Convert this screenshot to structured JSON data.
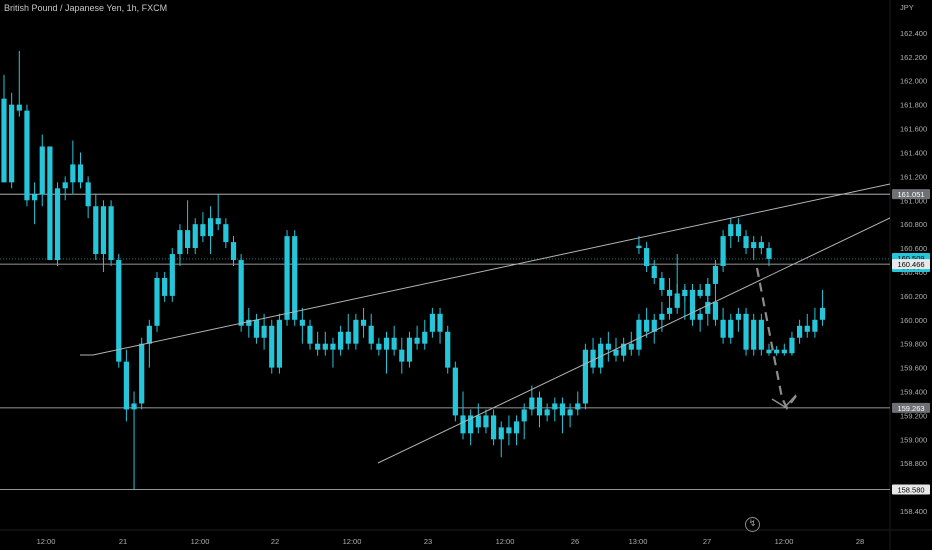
{
  "title": "British Pound / Japanese Yen, 1h, FXCM",
  "icons": {
    "bolt": "lightning-bolt-icon"
  },
  "chart_data": {
    "type": "candlestick",
    "title": "British Pound / Japanese Yen, 1h, FXCM",
    "currency": "JPY",
    "ylim": [
      158.3,
      162.55
    ],
    "yticks": [
      "162.400",
      "162.200",
      "162.000",
      "161.800",
      "161.600",
      "161.400",
      "161.200",
      "161.000",
      "160.800",
      "160.600",
      "160.400",
      "160.200",
      "160.000",
      "159.800",
      "159.600",
      "159.400",
      "159.200",
      "159.000",
      "158.800",
      "158.600",
      "158.400"
    ],
    "xticks": [
      "12:00",
      "21",
      "12:00",
      "22",
      "12:00",
      "23",
      "12:00",
      "26",
      "13:00",
      "27",
      "12:00",
      "28"
    ],
    "price_tags": [
      {
        "value": 161.051,
        "label": "161.051",
        "style": "gray"
      },
      {
        "value": 160.509,
        "label": "160.509",
        "sub": "38:55",
        "style": "cyan"
      },
      {
        "value": 160.466,
        "label": "160.466",
        "style": "white"
      },
      {
        "value": 159.263,
        "label": "159.263",
        "style": "gray"
      },
      {
        "value": 158.58,
        "label": "158.580",
        "style": "white"
      }
    ],
    "horizontal_levels": [
      161.051,
      160.466,
      159.263,
      158.58
    ],
    "wedge": {
      "upper": [
        {
          "t": 0,
          "p": 159.76
        },
        {
          "t": 106,
          "p": 161.1
        }
      ],
      "lower": [
        {
          "t": 35,
          "p": 158.8
        },
        {
          "t": 106,
          "p": 160.8
        }
      ]
    },
    "projection": [
      {
        "t": 90.5,
        "p": 160.47
      },
      {
        "t": 95.5,
        "p": 159.38
      },
      {
        "t": 97.5,
        "p": 159.27
      },
      {
        "t": 98.8,
        "p": 159.37
      }
    ],
    "colors": {
      "bullish": "#26c6da",
      "bearish": "#26c6da",
      "background": "#000000",
      "lines": "#b4b4b4",
      "projection": "#8c8c8c"
    },
    "candles": [
      {
        "o": 161.85,
        "h": 162.05,
        "l": 161.15,
        "c": 161.15
      },
      {
        "o": 161.15,
        "h": 161.9,
        "l": 161.1,
        "c": 161.8
      },
      {
        "o": 161.8,
        "h": 162.25,
        "l": 161.7,
        "c": 161.75
      },
      {
        "o": 161.75,
        "h": 161.8,
        "l": 160.95,
        "c": 161.0
      },
      {
        "o": 161.0,
        "h": 161.15,
        "l": 160.8,
        "c": 161.05
      },
      {
        "o": 161.05,
        "h": 161.55,
        "l": 160.95,
        "c": 161.45
      },
      {
        "o": 161.45,
        "h": 161.45,
        "l": 160.5,
        "c": 160.5
      },
      {
        "o": 160.5,
        "h": 161.15,
        "l": 160.45,
        "c": 161.1
      },
      {
        "o": 161.1,
        "h": 161.2,
        "l": 161.0,
        "c": 161.15
      },
      {
        "o": 161.15,
        "h": 161.5,
        "l": 161.05,
        "c": 161.3
      },
      {
        "o": 161.3,
        "h": 161.4,
        "l": 161.1,
        "c": 161.15
      },
      {
        "o": 161.15,
        "h": 161.2,
        "l": 160.85,
        "c": 160.95
      },
      {
        "o": 160.95,
        "h": 161.05,
        "l": 160.5,
        "c": 160.55
      },
      {
        "o": 160.55,
        "h": 161.0,
        "l": 160.4,
        "c": 160.95
      },
      {
        "o": 160.95,
        "h": 161.0,
        "l": 160.45,
        "c": 160.5
      },
      {
        "o": 160.5,
        "h": 160.55,
        "l": 159.6,
        "c": 159.65
      },
      {
        "o": 159.65,
        "h": 159.75,
        "l": 159.15,
        "c": 159.25
      },
      {
        "o": 159.25,
        "h": 159.4,
        "l": 158.58,
        "c": 159.3
      },
      {
        "o": 159.3,
        "h": 159.85,
        "l": 159.25,
        "c": 159.8
      },
      {
        "o": 159.8,
        "h": 160.0,
        "l": 159.6,
        "c": 159.95
      },
      {
        "o": 159.95,
        "h": 160.4,
        "l": 159.9,
        "c": 160.35
      },
      {
        "o": 160.35,
        "h": 160.4,
        "l": 160.15,
        "c": 160.2
      },
      {
        "o": 160.2,
        "h": 160.6,
        "l": 160.15,
        "c": 160.55
      },
      {
        "o": 160.55,
        "h": 160.8,
        "l": 160.45,
        "c": 160.75
      },
      {
        "o": 160.75,
        "h": 161.0,
        "l": 160.55,
        "c": 160.6
      },
      {
        "o": 160.6,
        "h": 160.85,
        "l": 160.55,
        "c": 160.8
      },
      {
        "o": 160.8,
        "h": 160.9,
        "l": 160.65,
        "c": 160.7
      },
      {
        "o": 160.7,
        "h": 160.95,
        "l": 160.55,
        "c": 160.85
      },
      {
        "o": 160.85,
        "h": 161.05,
        "l": 160.75,
        "c": 160.8
      },
      {
        "o": 160.8,
        "h": 160.85,
        "l": 160.6,
        "c": 160.65
      },
      {
        "o": 160.65,
        "h": 160.7,
        "l": 160.45,
        "c": 160.5
      },
      {
        "o": 160.5,
        "h": 160.55,
        "l": 159.9,
        "c": 159.95
      },
      {
        "o": 159.95,
        "h": 160.1,
        "l": 159.85,
        "c": 160.0
      },
      {
        "o": 160.0,
        "h": 160.05,
        "l": 159.8,
        "c": 159.85
      },
      {
        "o": 159.85,
        "h": 160.05,
        "l": 159.75,
        "c": 159.95
      },
      {
        "o": 159.95,
        "h": 160.0,
        "l": 159.55,
        "c": 159.6
      },
      {
        "o": 159.6,
        "h": 160.05,
        "l": 159.55,
        "c": 160.0
      },
      {
        "o": 160.0,
        "h": 160.75,
        "l": 159.95,
        "c": 160.7
      },
      {
        "o": 160.7,
        "h": 160.75,
        "l": 159.95,
        "c": 160.0
      },
      {
        "o": 160.0,
        "h": 160.1,
        "l": 159.8,
        "c": 159.95
      },
      {
        "o": 159.95,
        "h": 160.0,
        "l": 159.75,
        "c": 159.8
      },
      {
        "o": 159.8,
        "h": 159.9,
        "l": 159.7,
        "c": 159.75
      },
      {
        "o": 159.75,
        "h": 159.9,
        "l": 159.7,
        "c": 159.8
      },
      {
        "o": 159.8,
        "h": 159.85,
        "l": 159.6,
        "c": 159.75
      },
      {
        "o": 159.75,
        "h": 159.95,
        "l": 159.7,
        "c": 159.9
      },
      {
        "o": 159.9,
        "h": 160.05,
        "l": 159.75,
        "c": 159.8
      },
      {
        "o": 159.8,
        "h": 160.05,
        "l": 159.75,
        "c": 160.0
      },
      {
        "o": 160.0,
        "h": 160.1,
        "l": 159.85,
        "c": 159.95
      },
      {
        "o": 159.95,
        "h": 160.05,
        "l": 159.75,
        "c": 159.8
      },
      {
        "o": 159.8,
        "h": 159.85,
        "l": 159.7,
        "c": 159.75
      },
      {
        "o": 159.75,
        "h": 159.9,
        "l": 159.55,
        "c": 159.85
      },
      {
        "o": 159.85,
        "h": 159.95,
        "l": 159.7,
        "c": 159.75
      },
      {
        "o": 159.75,
        "h": 159.85,
        "l": 159.55,
        "c": 159.65
      },
      {
        "o": 159.65,
        "h": 159.9,
        "l": 159.6,
        "c": 159.85
      },
      {
        "o": 159.85,
        "h": 159.95,
        "l": 159.75,
        "c": 159.8
      },
      {
        "o": 159.8,
        "h": 160.0,
        "l": 159.75,
        "c": 159.9
      },
      {
        "o": 159.9,
        "h": 160.1,
        "l": 159.85,
        "c": 160.05
      },
      {
        "o": 160.05,
        "h": 160.1,
        "l": 159.8,
        "c": 159.9
      },
      {
        "o": 159.9,
        "h": 159.95,
        "l": 159.55,
        "c": 159.6
      },
      {
        "o": 159.6,
        "h": 159.65,
        "l": 159.15,
        "c": 159.2
      },
      {
        "o": 159.2,
        "h": 159.4,
        "l": 159.0,
        "c": 159.05
      },
      {
        "o": 159.05,
        "h": 159.25,
        "l": 158.95,
        "c": 159.2
      },
      {
        "o": 159.2,
        "h": 159.3,
        "l": 159.05,
        "c": 159.1
      },
      {
        "o": 159.1,
        "h": 159.25,
        "l": 159.05,
        "c": 159.2
      },
      {
        "o": 159.2,
        "h": 159.25,
        "l": 158.95,
        "c": 159.0
      },
      {
        "o": 159.0,
        "h": 159.15,
        "l": 158.85,
        "c": 159.1
      },
      {
        "o": 159.1,
        "h": 159.2,
        "l": 158.95,
        "c": 159.05
      },
      {
        "o": 159.05,
        "h": 159.2,
        "l": 158.95,
        "c": 159.15
      },
      {
        "o": 159.15,
        "h": 159.3,
        "l": 159.0,
        "c": 159.25
      },
      {
        "o": 159.25,
        "h": 159.45,
        "l": 159.2,
        "c": 159.35
      },
      {
        "o": 159.35,
        "h": 159.4,
        "l": 159.1,
        "c": 159.2
      },
      {
        "o": 159.2,
        "h": 159.3,
        "l": 159.15,
        "c": 159.25
      },
      {
        "o": 159.25,
        "h": 159.35,
        "l": 159.15,
        "c": 159.3
      },
      {
        "o": 159.3,
        "h": 159.35,
        "l": 159.05,
        "c": 159.2
      },
      {
        "o": 159.2,
        "h": 159.3,
        "l": 159.1,
        "c": 159.25
      },
      {
        "o": 159.25,
        "h": 159.4,
        "l": 159.2,
        "c": 159.3
      },
      {
        "o": 159.3,
        "h": 159.8,
        "l": 159.25,
        "c": 159.75
      },
      {
        "o": 159.75,
        "h": 159.85,
        "l": 159.55,
        "c": 159.6
      },
      {
        "o": 159.6,
        "h": 159.85,
        "l": 159.55,
        "c": 159.8
      },
      {
        "o": 159.8,
        "h": 159.9,
        "l": 159.65,
        "c": 159.75
      },
      {
        "o": 159.75,
        "h": 159.85,
        "l": 159.65,
        "c": 159.7
      }
    ],
    "candles_right": [
      {
        "o": 159.7,
        "h": 159.85,
        "l": 159.65,
        "c": 159.8
      },
      {
        "o": 159.8,
        "h": 159.9,
        "l": 159.7,
        "c": 159.75
      },
      {
        "o": 159.75,
        "h": 160.05,
        "l": 159.7,
        "c": 160.0
      },
      {
        "o": 160.0,
        "h": 160.1,
        "l": 159.85,
        "c": 159.9
      },
      {
        "o": 159.9,
        "h": 160.05,
        "l": 159.8,
        "c": 160.0
      },
      {
        "o": 160.0,
        "h": 160.15,
        "l": 159.9,
        "c": 160.05
      },
      {
        "o": 160.05,
        "h": 160.2,
        "l": 160.0,
        "c": 160.1
      },
      {
        "o": 160.1,
        "h": 160.55,
        "l": 160.05,
        "c": 160.2
      },
      {
        "o": 160.2,
        "h": 160.3,
        "l": 160.0,
        "c": 160.25
      },
      {
        "o": 160.25,
        "h": 160.3,
        "l": 159.95,
        "c": 160.0
      },
      {
        "o": 160.0,
        "h": 160.1,
        "l": 159.9,
        "c": 160.05
      },
      {
        "o": 160.05,
        "h": 160.2,
        "l": 159.95,
        "c": 160.15
      },
      {
        "o": 160.15,
        "h": 160.25,
        "l": 159.95,
        "c": 160.0
      },
      {
        "o": 160.0,
        "h": 160.1,
        "l": 159.8,
        "c": 159.85
      },
      {
        "o": 159.85,
        "h": 160.05,
        "l": 159.8,
        "c": 160.0
      },
      {
        "o": 160.0,
        "h": 160.1,
        "l": 159.9,
        "c": 160.05
      },
      {
        "o": 160.05,
        "h": 160.1,
        "l": 159.7,
        "c": 159.75
      },
      {
        "o": 159.75,
        "h": 160.05,
        "l": 159.7,
        "c": 160.0
      },
      {
        "o": 160.0,
        "h": 160.05,
        "l": 159.7,
        "c": 159.75
      },
      {
        "o": 159.75,
        "h": 159.8,
        "l": 159.7,
        "c": 159.72
      },
      {
        "o": 159.72,
        "h": 159.78,
        "l": 159.7,
        "c": 159.75
      },
      {
        "o": 159.75,
        "h": 159.8,
        "l": 159.7,
        "c": 159.72
      },
      {
        "o": 159.72,
        "h": 159.9,
        "l": 159.7,
        "c": 159.85
      },
      {
        "o": 159.85,
        "h": 160.0,
        "l": 159.8,
        "c": 159.95
      },
      {
        "o": 159.95,
        "h": 160.05,
        "l": 159.85,
        "c": 159.9
      },
      {
        "o": 159.9,
        "h": 160.1,
        "l": 159.85,
        "c": 160.0
      },
      {
        "o": 160.0,
        "h": 160.25,
        "l": 159.95,
        "c": 160.1
      }
    ],
    "candles_27": [
      {
        "o": 160.62,
        "h": 160.7,
        "l": 160.55,
        "c": 160.6
      },
      {
        "o": 160.6,
        "h": 160.65,
        "l": 160.4,
        "c": 160.45
      },
      {
        "o": 160.45,
        "h": 160.5,
        "l": 160.3,
        "c": 160.35
      },
      {
        "o": 160.35,
        "h": 160.4,
        "l": 160.2,
        "c": 160.25
      },
      {
        "o": 160.25,
        "h": 160.35,
        "l": 160.15,
        "c": 160.2
      },
      {
        "o": 160.2,
        "h": 160.3,
        "l": 160.15,
        "c": 160.22
      },
      {
        "o": 160.22,
        "h": 160.28,
        "l": 160.15,
        "c": 160.2
      },
      {
        "o": 160.2,
        "h": 160.28,
        "l": 160.15,
        "c": 160.25
      },
      {
        "o": 160.25,
        "h": 160.3,
        "l": 160.18,
        "c": 160.2
      },
      {
        "o": 160.2,
        "h": 160.35,
        "l": 160.15,
        "c": 160.3
      },
      {
        "o": 160.3,
        "h": 160.5,
        "l": 160.25,
        "c": 160.45
      },
      {
        "o": 160.45,
        "h": 160.75,
        "l": 160.4,
        "c": 160.7
      },
      {
        "o": 160.7,
        "h": 160.85,
        "l": 160.6,
        "c": 160.8
      },
      {
        "o": 160.8,
        "h": 160.85,
        "l": 160.65,
        "c": 160.7
      },
      {
        "o": 160.7,
        "h": 160.75,
        "l": 160.55,
        "c": 160.6
      },
      {
        "o": 160.6,
        "h": 160.7,
        "l": 160.5,
        "c": 160.65
      },
      {
        "o": 160.65,
        "h": 160.7,
        "l": 160.55,
        "c": 160.6
      },
      {
        "o": 160.6,
        "h": 160.65,
        "l": 160.45,
        "c": 160.51
      }
    ]
  }
}
